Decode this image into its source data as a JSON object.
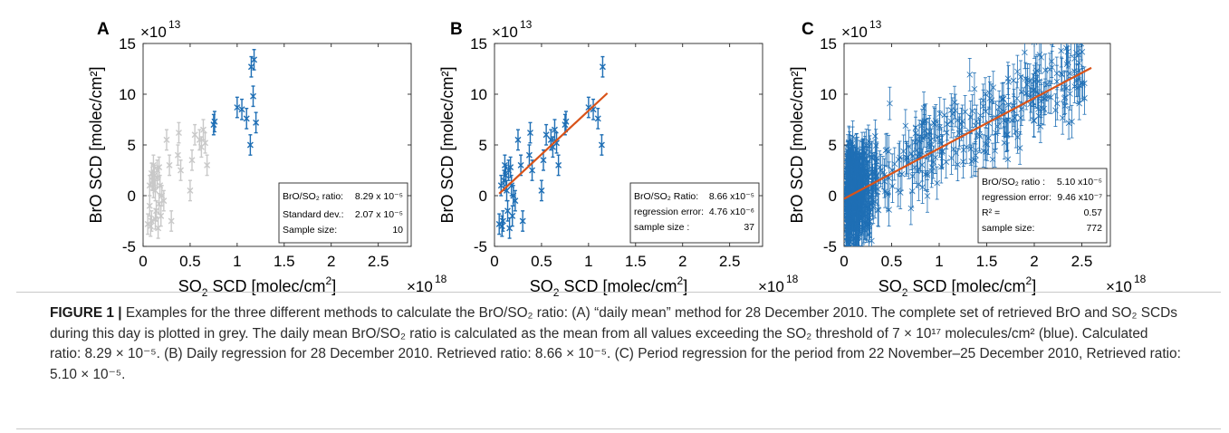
{
  "figure": {
    "panels": [
      {
        "label": "A",
        "exponent_y": "13",
        "exponent_x": "18",
        "ylabel": "BrO SCD [molec/cm²]",
        "xlabel_pre": "SO",
        "xlabel_sub": "2",
        "xlabel_post": " SCD [molec/cm",
        "xlabel_sup": "2",
        "xlabel_end": "]",
        "info": [
          {
            "label": "BrO/SO₂ ratio:",
            "value": "8.29 x 10⁻⁵"
          },
          {
            "label": "Standard dev.:",
            "value": "2.07 x 10⁻⁵"
          },
          {
            "label": "Sample size:",
            "value": "10"
          }
        ]
      },
      {
        "label": "B",
        "exponent_y": "13",
        "exponent_x": "18",
        "ylabel": "BrO SCD [molec/cm²]",
        "info": [
          {
            "label": "BrO/SO₂ Ratio:",
            "value": "8.66 x10⁻⁵"
          },
          {
            "label": "regression error:",
            "value": "4.76 x10⁻⁶"
          },
          {
            "label": "sample size :",
            "value": "37"
          }
        ]
      },
      {
        "label": "C",
        "exponent_y": "13",
        "exponent_x": "18",
        "ylabel": "BrO SCD [molec/cm²]",
        "info": [
          {
            "label": "BrO/SO₂ ratio :",
            "value": "5.10 x10⁻⁵"
          },
          {
            "label": "regression error:",
            "value": "9.46 x10⁻⁷"
          },
          {
            "label": "R² =",
            "value": "0.57"
          },
          {
            "label": "sample size:",
            "value": "772"
          }
        ]
      }
    ],
    "caption": {
      "fig_label": "FIGURE 1 |",
      "text": "Examples for the three different methods to calculate the BrO/SO₂ ratio: (A) “daily mean” method for 28 December 2010. The complete set of retrieved BrO and SO₂ SCDs during this day is plotted in grey. The daily mean BrO/SO₂ ratio is calculated as the mean from all values exceeding the SO₂ threshold of 7 × 10¹⁷ molecules/cm² (blue). Calculated ratio: 8.29 × 10⁻⁵. (B) Daily regression for 28 December 2010. Retrieved ratio: 8.66 × 10⁻⁵. (C) Period regression for the period from 22 November–25 December 2010, Retrieved ratio: 5.10 × 10⁻⁵."
    }
  },
  "colors": {
    "blue": "#1f6fb5",
    "grey": "#c9c9c9",
    "fit": "#d95319"
  },
  "chart_data": [
    {
      "type": "scatter",
      "title": "A",
      "xlabel": "SO₂ SCD [molec/cm²]",
      "ylabel": "BrO SCD [molec/cm²]",
      "x_multiplier": "×10¹⁸",
      "y_multiplier": "×10¹³",
      "xlim": [
        0,
        2.85
      ],
      "ylim": [
        -5,
        15
      ],
      "xticks": [
        0,
        0.5,
        1,
        1.5,
        2,
        2.5
      ],
      "yticks": [
        -5,
        0,
        5,
        10,
        15
      ],
      "series": [
        {
          "name": "grey",
          "x": [
            0.05,
            0.07,
            0.08,
            0.09,
            0.1,
            0.11,
            0.12,
            0.13,
            0.14,
            0.15,
            0.16,
            0.17,
            0.18,
            0.19,
            0.2,
            0.22,
            0.25,
            0.28,
            0.3,
            0.37,
            0.38,
            0.4,
            0.5,
            0.52,
            0.55,
            0.6,
            0.62,
            0.64,
            0.66,
            0.68,
            0.07,
            0.09,
            0.11,
            0.13,
            0.15,
            0.17
          ],
          "y": [
            -2.8,
            1.0,
            -3.0,
            -2.5,
            1.5,
            3.0,
            2.0,
            0.5,
            -1.5,
            2.5,
            -3.2,
            2.8,
            1.0,
            -2.0,
            0.0,
            -0.5,
            5.5,
            3.0,
            -2.5,
            4.0,
            6.2,
            2.5,
            0.5,
            3.5,
            6.0,
            5.5,
            4.8,
            6.5,
            5.2,
            3.0,
            -1.0,
            2.2,
            0.8,
            -2.3,
            1.8,
            -0.8
          ],
          "err": [
            1.0,
            1.0,
            1.0,
            1.0,
            1.0,
            1.0,
            1.0,
            1.0,
            1.0,
            1.0,
            1.0,
            1.0,
            1.0,
            1.0,
            1.0,
            1.0,
            1.0,
            1.0,
            1.0,
            1.0,
            1.0,
            1.0,
            1.0,
            1.0,
            1.0,
            1.0,
            1.0,
            1.0,
            1.0,
            1.0,
            1.0,
            1.0,
            1.0,
            1.0,
            1.0,
            1.0
          ]
        },
        {
          "name": "blue",
          "x": [
            0.75,
            0.76,
            1.0,
            1.05,
            1.1,
            1.14,
            1.15,
            1.17,
            1.18,
            1.2
          ],
          "y": [
            7.0,
            7.3,
            8.7,
            8.5,
            7.6,
            5.0,
            12.7,
            9.8,
            13.4,
            7.2
          ],
          "err": [
            1.0,
            1.0,
            1.0,
            1.0,
            1.0,
            1.0,
            1.0,
            1.0,
            1.0,
            1.0
          ]
        }
      ]
    },
    {
      "type": "scatter",
      "title": "B",
      "xlabel": "SO₂ SCD [molec/cm²]",
      "ylabel": "BrO SCD [molec/cm²]",
      "x_multiplier": "×10¹⁸",
      "y_multiplier": "×10¹³",
      "xlim": [
        0,
        2.85
      ],
      "ylim": [
        -5,
        15
      ],
      "xticks": [
        0,
        0.5,
        1,
        1.5,
        2,
        2.5
      ],
      "yticks": [
        -5,
        0,
        5,
        10,
        15
      ],
      "series": [
        {
          "name": "blue",
          "x": [
            0.05,
            0.07,
            0.08,
            0.09,
            0.1,
            0.11,
            0.12,
            0.13,
            0.14,
            0.15,
            0.16,
            0.17,
            0.18,
            0.19,
            0.2,
            0.22,
            0.25,
            0.28,
            0.3,
            0.37,
            0.38,
            0.4,
            0.5,
            0.52,
            0.55,
            0.6,
            0.62,
            0.64,
            0.66,
            0.68,
            0.75,
            0.76,
            1.0,
            1.05,
            1.1,
            1.14,
            1.15
          ],
          "y": [
            -2.8,
            1.0,
            -3.0,
            -2.5,
            1.5,
            3.0,
            2.0,
            0.5,
            -1.5,
            2.5,
            -3.2,
            2.8,
            1.0,
            -2.0,
            0.0,
            -0.5,
            5.5,
            3.0,
            -2.5,
            4.0,
            6.2,
            2.5,
            0.5,
            3.5,
            6.0,
            5.5,
            4.8,
            6.5,
            5.2,
            3.0,
            7.0,
            7.3,
            8.7,
            8.5,
            7.6,
            5.0,
            12.7
          ],
          "err": [
            1.0,
            1.0,
            1.0,
            1.0,
            1.0,
            1.0,
            1.0,
            1.0,
            1.0,
            1.0,
            1.0,
            1.0,
            1.0,
            1.0,
            1.0,
            1.0,
            1.0,
            1.0,
            1.0,
            1.0,
            1.0,
            1.0,
            1.0,
            1.0,
            1.0,
            1.0,
            1.0,
            1.0,
            1.0,
            1.0,
            1.0,
            1.0,
            1.0,
            1.0,
            1.0,
            1.0,
            1.0
          ]
        }
      ],
      "fit": {
        "x": [
          0.05,
          1.2
        ],
        "y": [
          0.2,
          10.1
        ]
      }
    },
    {
      "type": "scatter",
      "title": "C",
      "xlabel": "SO₂ SCD [molec/cm²]",
      "ylabel": "BrO SCD [molec/cm²]",
      "x_multiplier": "×10¹⁸",
      "y_multiplier": "×10¹³",
      "xlim": [
        0,
        2.8
      ],
      "ylim": [
        -5,
        15
      ],
      "xticks": [
        0,
        0.5,
        1,
        1.5,
        2,
        2.5
      ],
      "yticks": [
        -5,
        0,
        5,
        10,
        15
      ],
      "series": [
        {
          "name": "blue",
          "count": 772,
          "x_range": [
            0.02,
            2.55
          ],
          "slope": 5.1,
          "intercept": -0.3,
          "scatter_sd": 2.2,
          "err": 1.6
        }
      ],
      "fit": {
        "x": [
          0.0,
          2.6
        ],
        "y": [
          -0.3,
          12.6
        ]
      }
    }
  ]
}
